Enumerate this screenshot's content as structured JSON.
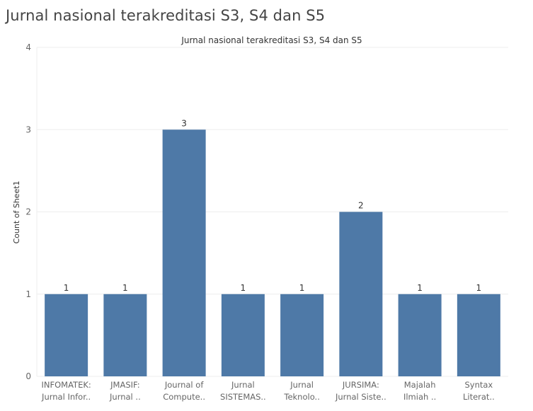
{
  "page": {
    "title": "Jurnal nasional terakreditasi S3, S4 dan S5"
  },
  "colors": {
    "bar": "#4e79a7",
    "grid": "#eeeeee",
    "axis_text": "#666666",
    "label_text": "#333333"
  },
  "chart_data": {
    "type": "bar",
    "title": "Jurnal nasional terakreditasi S3, S4 dan S5",
    "xlabel": "",
    "ylabel": "Count of Sheet1",
    "ylim": [
      0,
      4
    ],
    "yticks": [
      0,
      1,
      2,
      3,
      4
    ],
    "grid": true,
    "categories": [
      [
        "INFOMATEK:",
        "Jurnal Infor.."
      ],
      [
        "JMASIF:",
        "Jurnal .."
      ],
      [
        "Journal of",
        "Compute.."
      ],
      [
        "Jurnal",
        "SISTEMAS.."
      ],
      [
        "Jurnal",
        "Teknolo.."
      ],
      [
        "JURSIMA:",
        "Jurnal Siste.."
      ],
      [
        "Majalah",
        "Ilmiah .."
      ],
      [
        "Syntax",
        "Literat.."
      ]
    ],
    "values": [
      1,
      1,
      3,
      1,
      1,
      2,
      1,
      1
    ]
  }
}
